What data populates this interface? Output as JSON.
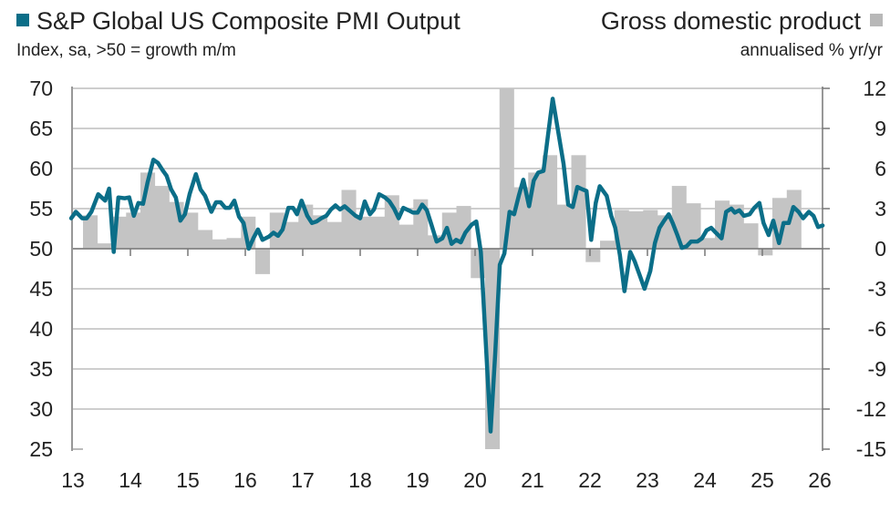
{
  "chart_data": {
    "type": "bar+line",
    "legend": [
      {
        "name": "S&P Global US Composite PMI Output",
        "color": "#0b6e88",
        "marker": "square"
      },
      {
        "name": "Gross domestic product",
        "color": "#c4c4c4",
        "marker": "square"
      }
    ],
    "left_axis_label": "Index, sa, >50 = growth m/m",
    "right_axis_label": "annualised % yr/yr",
    "ylim_left": [
      25,
      70
    ],
    "ylim_right": [
      -15,
      12
    ],
    "yticks_left": [
      "70",
      "65",
      "60",
      "55",
      "50",
      "45",
      "40",
      "35",
      "30",
      "25"
    ],
    "yticks_right": [
      "12",
      "9",
      "6",
      "3",
      "0",
      "-3",
      "-6",
      "-9",
      "-12",
      "-15"
    ],
    "xticks": [
      "13",
      "14",
      "15",
      "16",
      "17",
      "18",
      "19",
      "20",
      "21",
      "22",
      "23",
      "24",
      "25",
      "26"
    ],
    "xlim": [
      13,
      26
    ],
    "grid": "horizontal",
    "gdp": {
      "first_quarter": "2013Q2",
      "values": [
        2.5,
        0.4,
        2.4,
        2.7,
        5.7,
        4.7,
        3.5,
        2.7,
        1.4,
        0.7,
        0.8,
        2.4,
        -1.9,
        2.7,
        2.0,
        3.3,
        2.5,
        2.0,
        4.4,
        2.4,
        2.4,
        4.0,
        1.8,
        3.7,
        1.0,
        2.7,
        3.2,
        -2.2,
        -15,
        12,
        4.6,
        5.7,
        7.0,
        3.3,
        7.0,
        -1.0,
        0.6,
        2.9,
        2.8,
        2.9,
        2.5,
        4.7,
        3.4,
        0.8,
        3.6,
        3.3,
        1.9,
        -0.5,
        3.8,
        4.4
      ]
    },
    "pmi": [
      [
        12.97,
        53.8
      ],
      [
        13.05,
        54.6
      ],
      [
        13.16,
        53.8
      ],
      [
        13.24,
        53.8
      ],
      [
        13.32,
        54.6
      ],
      [
        13.44,
        56.8
      ],
      [
        13.56,
        56.0
      ],
      [
        13.63,
        57.5
      ],
      [
        13.71,
        49.6
      ],
      [
        13.79,
        56.4
      ],
      [
        13.9,
        56.3
      ],
      [
        13.98,
        56.4
      ],
      [
        14.06,
        54.1
      ],
      [
        14.14,
        55.7
      ],
      [
        14.22,
        55.6
      ],
      [
        14.3,
        58.3
      ],
      [
        14.4,
        61.1
      ],
      [
        14.48,
        60.7
      ],
      [
        14.56,
        59.8
      ],
      [
        14.63,
        59.1
      ],
      [
        14.71,
        57.4
      ],
      [
        14.79,
        56.4
      ],
      [
        14.87,
        53.5
      ],
      [
        14.95,
        54.3
      ],
      [
        15.03,
        56.8
      ],
      [
        15.14,
        59.3
      ],
      [
        15.22,
        57.4
      ],
      [
        15.3,
        56.6
      ],
      [
        15.41,
        54.6
      ],
      [
        15.49,
        55.8
      ],
      [
        15.57,
        55.8
      ],
      [
        15.65,
        55.1
      ],
      [
        15.73,
        55.1
      ],
      [
        15.81,
        56.0
      ],
      [
        15.89,
        54.0
      ],
      [
        15.97,
        53.2
      ],
      [
        16.06,
        50.0
      ],
      [
        16.14,
        51.3
      ],
      [
        16.22,
        52.4
      ],
      [
        16.3,
        51.1
      ],
      [
        16.41,
        51.5
      ],
      [
        16.49,
        52.0
      ],
      [
        16.57,
        51.6
      ],
      [
        16.65,
        52.4
      ],
      [
        16.75,
        55.1
      ],
      [
        16.83,
        55.1
      ],
      [
        16.9,
        54.3
      ],
      [
        16.98,
        56.0
      ],
      [
        17.08,
        54.1
      ],
      [
        17.16,
        53.2
      ],
      [
        17.24,
        53.4
      ],
      [
        17.32,
        53.8
      ],
      [
        17.41,
        54.1
      ],
      [
        17.49,
        54.9
      ],
      [
        17.57,
        55.4
      ],
      [
        17.65,
        54.9
      ],
      [
        17.73,
        55.3
      ],
      [
        17.84,
        54.6
      ],
      [
        17.92,
        54.1
      ],
      [
        18.0,
        53.8
      ],
      [
        18.08,
        55.9
      ],
      [
        18.17,
        54.3
      ],
      [
        18.24,
        54.9
      ],
      [
        18.33,
        56.8
      ],
      [
        18.43,
        56.4
      ],
      [
        18.51,
        55.9
      ],
      [
        18.59,
        55.0
      ],
      [
        18.67,
        53.8
      ],
      [
        18.75,
        55.1
      ],
      [
        18.84,
        54.8
      ],
      [
        18.92,
        54.5
      ],
      [
        19.0,
        54.5
      ],
      [
        19.08,
        55.5
      ],
      [
        19.16,
        54.8
      ],
      [
        19.24,
        53.0
      ],
      [
        19.33,
        50.9
      ],
      [
        19.43,
        51.3
      ],
      [
        19.51,
        52.6
      ],
      [
        19.59,
        50.6
      ],
      [
        19.67,
        51.1
      ],
      [
        19.75,
        50.8
      ],
      [
        19.83,
        52.0
      ],
      [
        19.94,
        53.0
      ],
      [
        20.02,
        53.4
      ],
      [
        20.1,
        49.6
      ],
      [
        20.27,
        27.2
      ],
      [
        20.35,
        37.0
      ],
      [
        20.43,
        48.0
      ],
      [
        20.51,
        49.4
      ],
      [
        20.6,
        54.6
      ],
      [
        20.68,
        54.3
      ],
      [
        20.76,
        56.6
      ],
      [
        20.84,
        58.6
      ],
      [
        20.94,
        55.3
      ],
      [
        21.02,
        58.5
      ],
      [
        21.1,
        59.5
      ],
      [
        21.19,
        59.7
      ],
      [
        21.27,
        64.2
      ],
      [
        21.35,
        68.7
      ],
      [
        21.44,
        64.9
      ],
      [
        21.54,
        60.6
      ],
      [
        21.62,
        55.5
      ],
      [
        21.7,
        55.2
      ],
      [
        21.78,
        57.7
      ],
      [
        21.87,
        57.4
      ],
      [
        21.94,
        57.2
      ],
      [
        22.02,
        51.1
      ],
      [
        22.1,
        55.7
      ],
      [
        22.17,
        57.8
      ],
      [
        22.29,
        56.6
      ],
      [
        22.37,
        54.1
      ],
      [
        22.44,
        52.6
      ],
      [
        22.52,
        49.2
      ],
      [
        22.6,
        44.7
      ],
      [
        22.7,
        49.6
      ],
      [
        22.78,
        48.4
      ],
      [
        22.87,
        46.6
      ],
      [
        22.95,
        45.0
      ],
      [
        23.05,
        47.2
      ],
      [
        23.13,
        50.7
      ],
      [
        23.21,
        52.6
      ],
      [
        23.29,
        53.5
      ],
      [
        23.37,
        54.3
      ],
      [
        23.44,
        53.2
      ],
      [
        23.52,
        51.7
      ],
      [
        23.6,
        50.1
      ],
      [
        23.68,
        50.3
      ],
      [
        23.76,
        50.9
      ],
      [
        23.87,
        50.9
      ],
      [
        23.95,
        51.3
      ],
      [
        24.03,
        52.3
      ],
      [
        24.11,
        52.6
      ],
      [
        24.19,
        52.0
      ],
      [
        24.29,
        51.3
      ],
      [
        24.37,
        54.6
      ],
      [
        24.46,
        55.0
      ],
      [
        24.52,
        54.5
      ],
      [
        24.6,
        54.8
      ],
      [
        24.68,
        54.1
      ],
      [
        24.78,
        54.3
      ],
      [
        24.86,
        55.1
      ],
      [
        24.95,
        55.7
      ],
      [
        25.02,
        53.2
      ],
      [
        25.11,
        51.7
      ],
      [
        25.19,
        53.5
      ],
      [
        25.29,
        50.7
      ],
      [
        25.37,
        53.2
      ],
      [
        25.46,
        53.2
      ],
      [
        25.54,
        55.2
      ],
      [
        25.63,
        54.6
      ],
      [
        25.71,
        53.8
      ],
      [
        25.81,
        54.6
      ],
      [
        25.89,
        54.1
      ],
      [
        25.97,
        52.7
      ],
      [
        26.05,
        52.9
      ]
    ]
  }
}
